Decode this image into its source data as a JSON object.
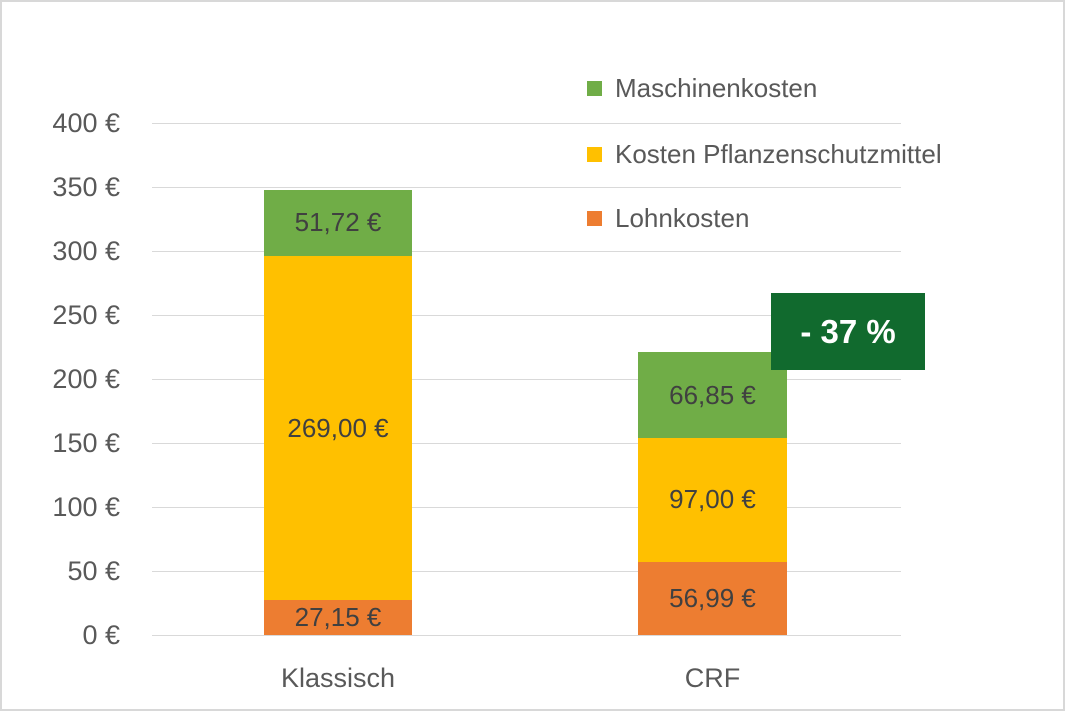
{
  "chart_data": {
    "type": "bar",
    "stacked": true,
    "categories": [
      "Klassisch",
      "CRF"
    ],
    "series": [
      {
        "name": "Lohnkosten",
        "color": "#ED7D31",
        "values": [
          27.15,
          56.99
        ],
        "value_labels": [
          "27,15 €",
          "56,99 €"
        ]
      },
      {
        "name": "Kosten Pflanzenschutzmittel",
        "color": "#FFC000",
        "values": [
          269.0,
          97.0
        ],
        "value_labels": [
          "269,00 €",
          "97,00 €"
        ]
      },
      {
        "name": "Maschinenkosten",
        "color": "#70AD47",
        "values": [
          51.72,
          66.85
        ],
        "value_labels": [
          "51,72 €",
          "66,85 €"
        ]
      }
    ],
    "ylim": [
      0,
      400
    ],
    "ytick_interval": 50,
    "ytick_labels": [
      "0 €",
      "50 €",
      "100 €",
      "150 €",
      "200 €",
      "250 €",
      "300 €",
      "350 €",
      "400 €"
    ],
    "grid": true,
    "legend": {
      "position": "top-right",
      "entries": [
        {
          "label": "Maschinenkosten",
          "color": "#70AD47"
        },
        {
          "label": "Kosten Pflanzenschutzmittel",
          "color": "#FFC000"
        },
        {
          "label": "Lohnkosten",
          "color": "#ED7D31"
        }
      ]
    },
    "annotation": {
      "text": "- 37 %",
      "background": "#116A2E",
      "color": "#FFFFFF"
    }
  },
  "colors": {
    "frame_border": "#D8D8D8",
    "grid": "#D9D9D9",
    "axis_text": "#595959",
    "bar_label_text": "#404040"
  }
}
